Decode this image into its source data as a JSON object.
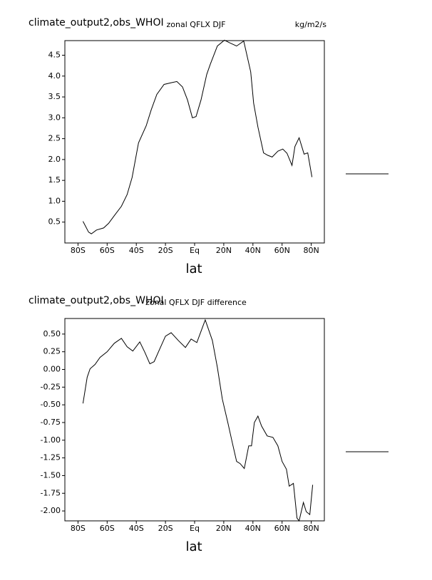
{
  "chart_data": [
    {
      "type": "line",
      "title": "climate_output2,obs_WHOI",
      "subtitle": "zonal QFLX DJF",
      "units": "kg/m2/s",
      "x_label": "lat",
      "xlim": [
        -89,
        89
      ],
      "ylim": [
        0,
        4.85
      ],
      "color": "#000000",
      "xticks": [
        {
          "value": -80,
          "label": "80S"
        },
        {
          "value": -60,
          "label": "60S"
        },
        {
          "value": -40,
          "label": "40S"
        },
        {
          "value": -20,
          "label": "20S"
        },
        {
          "value": 0,
          "label": "Eq"
        },
        {
          "value": 20,
          "label": "20N"
        },
        {
          "value": 40,
          "label": "40N"
        },
        {
          "value": 60,
          "label": "60N"
        },
        {
          "value": 80,
          "label": "80N"
        }
      ],
      "yticks": [
        0.5,
        {
          "value": 1,
          "label": "1.0"
        },
        1.5,
        {
          "value": 2,
          "label": "2.0"
        },
        2.5,
        {
          "value": 3,
          "label": "3.0"
        },
        3.5,
        {
          "value": 4,
          "label": "4.0"
        },
        4.5
      ],
      "x": [
        -76.6,
        -72.7,
        -70.8,
        -67.3,
        -62.4,
        -59,
        -55,
        -50.2,
        -46.3,
        -42.9,
        -38.5,
        -33.2,
        -29.8,
        -25.9,
        -21,
        -16.1,
        -12.2,
        -8.3,
        -4.9,
        -1.5,
        1,
        4.4,
        8.3,
        10.7,
        15.6,
        20.5,
        23.9,
        28.8,
        33.7,
        38.5,
        40.5,
        43.4,
        47.3,
        50.2,
        53.2,
        57.1,
        60.5,
        63.4,
        66.8,
        68.8,
        71.7,
        75.1,
        77.6,
        80.5
      ],
      "values": [
        0.52,
        0.26,
        0.22,
        0.31,
        0.36,
        0.47,
        0.66,
        0.88,
        1.16,
        1.57,
        2.4,
        2.81,
        3.19,
        3.56,
        3.8,
        3.84,
        3.87,
        3.74,
        3.43,
        3.0,
        3.03,
        3.43,
        4.04,
        4.28,
        4.72,
        4.86,
        4.8,
        4.72,
        4.84,
        4.1,
        3.35,
        2.78,
        2.16,
        2.1,
        2.06,
        2.2,
        2.25,
        2.15,
        1.86,
        2.31,
        2.52,
        2.13,
        2.16,
        1.58
      ]
    },
    {
      "type": "line",
      "title": "climate_output2,obs_WHOI",
      "subtitle": "zonal QFLX DJF difference",
      "x_label": "lat",
      "xlim": [
        -89,
        89
      ],
      "ylim": [
        -2.14,
        0.72
      ],
      "color": "#000000",
      "xticks": [
        {
          "value": -80,
          "label": "80S"
        },
        {
          "value": -60,
          "label": "60S"
        },
        {
          "value": -40,
          "label": "40S"
        },
        {
          "value": -20,
          "label": "20S"
        },
        {
          "value": 0,
          "label": "Eq"
        },
        {
          "value": 20,
          "label": "20N"
        },
        {
          "value": 40,
          "label": "40N"
        },
        {
          "value": 60,
          "label": "60N"
        },
        {
          "value": 80,
          "label": "80N"
        }
      ],
      "yticks": [
        {
          "value": 0.5,
          "label": "0.50"
        },
        0.25,
        {
          "value": 0,
          "label": "0.00"
        },
        -0.25,
        {
          "value": -0.5,
          "label": "-0.50"
        },
        -0.75,
        {
          "value": -1,
          "label": "-1.00"
        },
        -1.25,
        {
          "value": -1.5,
          "label": "-1.50"
        },
        -1.75,
        {
          "value": -2,
          "label": "-2.00"
        }
      ],
      "x": [
        -76.6,
        -73.7,
        -71.7,
        -68.3,
        -64.9,
        -60,
        -55.1,
        -50.2,
        -46.3,
        -42.4,
        -37.6,
        -34.1,
        -30.7,
        -27.8,
        -23.9,
        -20,
        -16.1,
        -11.2,
        -6.3,
        -2.4,
        1.5,
        4.4,
        7.3,
        12.2,
        15.6,
        19,
        22.9,
        25.9,
        28.8,
        31.2,
        34.1,
        37.1,
        39,
        41,
        43.4,
        45.9,
        49.8,
        53.7,
        57.1,
        60,
        63,
        64.9,
        67.8,
        70.2,
        71.7,
        74.6,
        76.6,
        79,
        81
      ],
      "values": [
        -0.48,
        -0.11,
        0.01,
        0.07,
        0.17,
        0.25,
        0.37,
        0.44,
        0.32,
        0.26,
        0.39,
        0.24,
        0.08,
        0.11,
        0.29,
        0.47,
        0.52,
        0.41,
        0.31,
        0.43,
        0.38,
        0.54,
        0.7,
        0.41,
        0.03,
        -0.42,
        -0.76,
        -1.04,
        -1.3,
        -1.33,
        -1.4,
        -1.08,
        -1.08,
        -0.75,
        -0.66,
        -0.8,
        -0.94,
        -0.96,
        -1.08,
        -1.3,
        -1.41,
        -1.65,
        -1.61,
        -2.1,
        -2.14,
        -1.88,
        -2.01,
        -2.05,
        -1.63
      ]
    }
  ]
}
